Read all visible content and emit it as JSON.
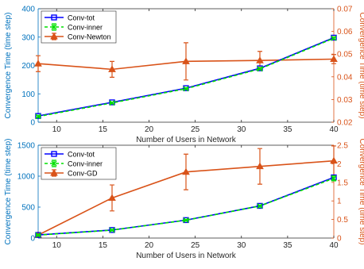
{
  "colors": {
    "left_axis": "#0072BD",
    "right_axis": "#D95319",
    "conv_tot": "#0000FF",
    "conv_inner": "#00E000",
    "conv_other": "#D95319",
    "axis_black": "#262626"
  },
  "chart_data": [
    {
      "type": "line",
      "title": "",
      "xlabel": "Number of Users in Network",
      "ylabel_left": "Convergence Time (time step)",
      "ylabel_right": "Convergence Time (time step)",
      "xlim": [
        8,
        40
      ],
      "ylim_left": [
        0,
        400
      ],
      "ylim_right": [
        0.02,
        0.07
      ],
      "x_ticks": [
        "10",
        "15",
        "20",
        "25",
        "30",
        "35",
        "40"
      ],
      "y_ticks_left": [
        "0",
        "100",
        "200",
        "300",
        "400"
      ],
      "y_ticks_right": [
        "0.02",
        "0.03",
        "0.04",
        "0.05",
        "0.06",
        "0.07"
      ],
      "grid": false,
      "legend_position": "top-left",
      "x": [
        8,
        16,
        24,
        32,
        40
      ],
      "series": [
        {
          "name": "Conv-tot",
          "axis": "left",
          "marker": "square",
          "values": [
            22,
            70,
            120,
            190,
            298
          ]
        },
        {
          "name": "Conv-inner",
          "axis": "left",
          "marker": "x",
          "values": [
            20,
            68,
            118,
            188,
            296
          ],
          "err": [
            3,
            3,
            3,
            3,
            3
          ]
        },
        {
          "name": "Conv-Newton",
          "axis": "right",
          "marker": "triangle",
          "values": [
            0.0458,
            0.0433,
            0.0468,
            0.0472,
            0.0478
          ],
          "err": [
            0.0035,
            0.0035,
            0.0082,
            0.004,
            0.002
          ]
        }
      ]
    },
    {
      "type": "line",
      "title": "",
      "xlabel": "Number of Users in Network",
      "ylabel_left": "Convergence Time (time step)",
      "ylabel_right": "Convergence Time (time step)",
      "xlim": [
        8,
        40
      ],
      "ylim_left": [
        0,
        1500
      ],
      "ylim_right": [
        0,
        2.5
      ],
      "x_ticks": [
        "10",
        "15",
        "20",
        "25",
        "30",
        "35",
        "40"
      ],
      "y_ticks_left": [
        "0",
        "500",
        "1000",
        "1500"
      ],
      "y_ticks_right": [
        "0",
        "0.5",
        "1",
        "1.5",
        "2",
        "2.5"
      ],
      "grid": false,
      "legend_position": "top-left",
      "x": [
        8,
        16,
        24,
        32,
        40
      ],
      "series": [
        {
          "name": "Conv-tot",
          "axis": "left",
          "marker": "square",
          "values": [
            50,
            130,
            290,
            520,
            980
          ]
        },
        {
          "name": "Conv-inner",
          "axis": "left",
          "marker": "x",
          "values": [
            48,
            128,
            288,
            518,
            965
          ],
          "err": [
            5,
            8,
            10,
            15,
            40
          ]
        },
        {
          "name": "Conv-GD",
          "axis": "right",
          "marker": "triangle",
          "values": [
            0.08,
            1.08,
            1.78,
            1.93,
            2.08
          ],
          "err": [
            0.02,
            0.35,
            0.48,
            0.48,
            0.4
          ]
        }
      ]
    }
  ]
}
